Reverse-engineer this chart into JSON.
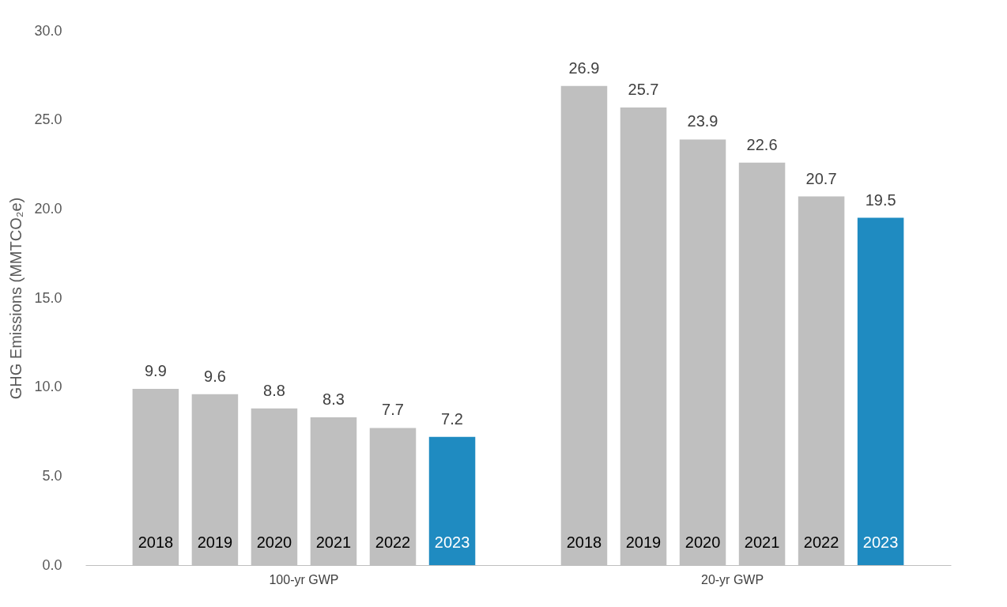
{
  "chart_data": {
    "type": "bar",
    "ylabel": "GHG Emissions (MMTCO₂e)",
    "categories": [
      "100-yr GWP",
      "20-yr GWP"
    ],
    "series": [
      {
        "name": "2018",
        "color": "#bfbfbf",
        "values": [
          9.9,
          26.9
        ]
      },
      {
        "name": "2019",
        "color": "#bfbfbf",
        "values": [
          9.6,
          25.7
        ]
      },
      {
        "name": "2020",
        "color": "#bfbfbf",
        "values": [
          8.8,
          23.9
        ]
      },
      {
        "name": "2021",
        "color": "#bfbfbf",
        "values": [
          8.3,
          22.6
        ]
      },
      {
        "name": "2022",
        "color": "#bfbfbf",
        "values": [
          7.7,
          20.7
        ]
      },
      {
        "name": "2023",
        "color": "#1f8bc1",
        "values": [
          7.2,
          19.5
        ]
      }
    ],
    "ylim": [
      0,
      30
    ],
    "yticks": [
      {
        "value": 0,
        "label": "0.0"
      },
      {
        "value": 5,
        "label": "5.0"
      },
      {
        "value": 10,
        "label": "10.0"
      },
      {
        "value": 15,
        "label": "15.0"
      },
      {
        "value": 20,
        "label": "20.0"
      },
      {
        "value": 25,
        "label": "25.0"
      },
      {
        "value": 30,
        "label": "30.0"
      }
    ],
    "data_labels": true,
    "legend": false
  }
}
